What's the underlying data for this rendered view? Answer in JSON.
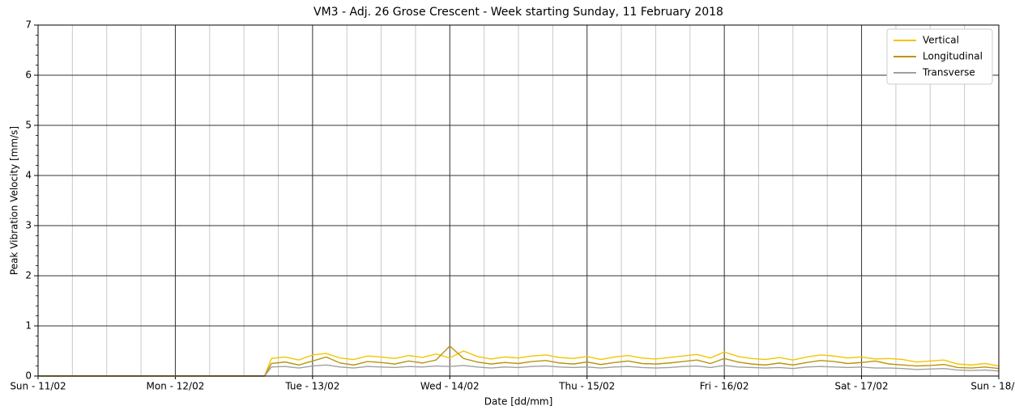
{
  "chart_data": {
    "type": "line",
    "title": "VM3 - Adj. 26 Grose Crescent - Week starting Sunday, 11 February 2018",
    "xlabel": "Date [dd/mm]",
    "ylabel": "Peak Vibration Velocity [mm/s]",
    "x": [
      0,
      1.65,
      1.7,
      1.8,
      1.9,
      2.0,
      2.1,
      2.2,
      2.3,
      2.4,
      2.5,
      2.6,
      2.7,
      2.8,
      2.9,
      3.0,
      3.1,
      3.2,
      3.3,
      3.4,
      3.5,
      3.6,
      3.7,
      3.8,
      3.9,
      4.0,
      4.1,
      4.2,
      4.3,
      4.4,
      4.5,
      4.6,
      4.7,
      4.8,
      4.9,
      5.0,
      5.1,
      5.2,
      5.3,
      5.4,
      5.5,
      5.6,
      5.7,
      5.8,
      5.9,
      6.0,
      6.1,
      6.2,
      6.3,
      6.4,
      6.5,
      6.6,
      6.7,
      6.8,
      6.9,
      7.0
    ],
    "series": [
      {
        "name": "Vertical",
        "color": "#f5c400",
        "values": [
          0,
          0,
          0.35,
          0.38,
          0.32,
          0.42,
          0.45,
          0.36,
          0.33,
          0.4,
          0.38,
          0.35,
          0.41,
          0.37,
          0.44,
          0.36,
          0.5,
          0.39,
          0.34,
          0.38,
          0.36,
          0.4,
          0.42,
          0.37,
          0.35,
          0.39,
          0.33,
          0.38,
          0.41,
          0.36,
          0.34,
          0.37,
          0.4,
          0.43,
          0.36,
          0.48,
          0.39,
          0.35,
          0.33,
          0.37,
          0.32,
          0.38,
          0.42,
          0.4,
          0.36,
          0.38,
          0.34,
          0.35,
          0.33,
          0.28,
          0.3,
          0.32,
          0.24,
          0.22,
          0.25,
          0.2
        ]
      },
      {
        "name": "Longitudinal",
        "color": "#b8960c",
        "values": [
          0,
          0,
          0.25,
          0.28,
          0.22,
          0.3,
          0.38,
          0.26,
          0.22,
          0.29,
          0.27,
          0.24,
          0.3,
          0.26,
          0.32,
          0.6,
          0.35,
          0.28,
          0.24,
          0.27,
          0.25,
          0.29,
          0.31,
          0.26,
          0.24,
          0.28,
          0.23,
          0.27,
          0.3,
          0.25,
          0.24,
          0.26,
          0.29,
          0.32,
          0.25,
          0.35,
          0.28,
          0.24,
          0.22,
          0.26,
          0.22,
          0.27,
          0.31,
          0.29,
          0.25,
          0.27,
          0.3,
          0.24,
          0.22,
          0.2,
          0.21,
          0.23,
          0.17,
          0.16,
          0.18,
          0.15
        ]
      },
      {
        "name": "Transverse",
        "color": "#a0a0a0",
        "values": [
          0,
          0,
          0.18,
          0.19,
          0.16,
          0.2,
          0.22,
          0.18,
          0.16,
          0.19,
          0.18,
          0.17,
          0.19,
          0.18,
          0.2,
          0.19,
          0.21,
          0.18,
          0.16,
          0.18,
          0.17,
          0.19,
          0.2,
          0.18,
          0.17,
          0.18,
          0.16,
          0.18,
          0.19,
          0.17,
          0.16,
          0.17,
          0.19,
          0.2,
          0.17,
          0.21,
          0.18,
          0.17,
          0.16,
          0.17,
          0.15,
          0.18,
          0.19,
          0.18,
          0.17,
          0.18,
          0.16,
          0.16,
          0.15,
          0.13,
          0.14,
          0.15,
          0.12,
          0.11,
          0.12,
          0.1
        ]
      }
    ],
    "xlim": [
      0,
      7
    ],
    "xticks": [
      {
        "value": 0,
        "label": "Sun - 11/02"
      },
      {
        "value": 1,
        "label": "Mon - 12/02"
      },
      {
        "value": 2,
        "label": "Tue - 13/02"
      },
      {
        "value": 3,
        "label": "Wed - 14/02"
      },
      {
        "value": 4,
        "label": "Thu - 15/02"
      },
      {
        "value": 5,
        "label": "Fri - 16/02"
      },
      {
        "value": 6,
        "label": "Sat - 17/02"
      },
      {
        "value": 7,
        "label": "Sun - 18/02"
      }
    ],
    "xminorticks": [
      0.25,
      0.5,
      0.75,
      1.25,
      1.5,
      1.75,
      2.25,
      2.5,
      2.75,
      3.25,
      3.5,
      3.75,
      4.25,
      4.5,
      4.75,
      5.25,
      5.5,
      5.75,
      6.25,
      6.5,
      6.75
    ],
    "ylim": [
      0,
      7
    ],
    "yticks": [
      0,
      1,
      2,
      3,
      4,
      5,
      6,
      7
    ],
    "yminorticks": [
      0.2,
      0.4,
      0.6,
      0.8,
      1.2,
      1.4,
      1.6,
      1.8,
      2.2,
      2.4,
      2.6,
      2.8,
      3.2,
      3.4,
      3.6,
      3.8,
      4.2,
      4.4,
      4.6,
      4.8,
      5.2,
      5.4,
      5.6,
      5.8,
      6.2,
      6.4,
      6.6,
      6.8
    ],
    "grid": true,
    "legend": "upper right"
  }
}
